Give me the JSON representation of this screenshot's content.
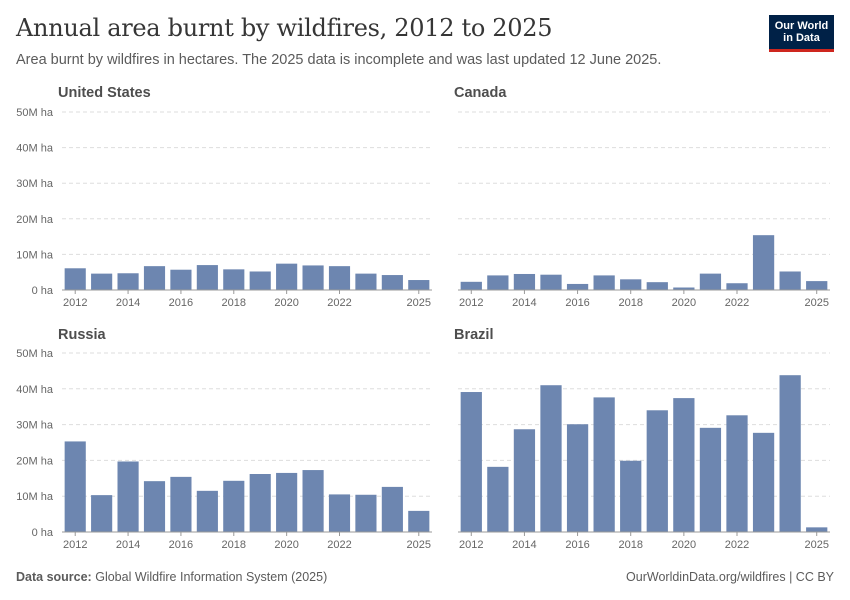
{
  "header": {
    "title": "Annual area burnt by wildfires, 2012 to 2025",
    "subtitle": "Area burnt by wildfires in hectares. The 2025 data is incomplete and was last updated 12 June 2025."
  },
  "logo": {
    "line1": "Our World",
    "line2": "in Data"
  },
  "footer": {
    "source_label": "Data source:",
    "source_text": "Global Wildfire Information System (2025)",
    "right_text": "OurWorldinData.org/wildfires | CC BY"
  },
  "colors": {
    "bar": "#6d86b0",
    "grid": "#dddddd",
    "axis": "#999999"
  },
  "chart_data": [
    {
      "type": "bar",
      "title": "United States",
      "x": [
        2012,
        2013,
        2014,
        2015,
        2016,
        2017,
        2018,
        2019,
        2020,
        2021,
        2022,
        2023,
        2024,
        2025
      ],
      "values": [
        6.1,
        4.6,
        4.7,
        6.7,
        5.7,
        7.0,
        5.8,
        5.2,
        7.4,
        6.9,
        6.7,
        4.6,
        4.2,
        2.8
      ],
      "unit": "M ha",
      "ylim": [
        0,
        50
      ],
      "yticks": [
        "0 ha",
        "10M ha",
        "20M ha",
        "30M ha",
        "40M ha",
        "50M ha"
      ],
      "xtick_labels": [
        "2012",
        "2014",
        "2016",
        "2018",
        "2020",
        "2022",
        "2025"
      ],
      "grid": true
    },
    {
      "type": "bar",
      "title": "Canada",
      "x": [
        2012,
        2013,
        2014,
        2015,
        2016,
        2017,
        2018,
        2019,
        2020,
        2021,
        2022,
        2023,
        2024,
        2025
      ],
      "values": [
        2.3,
        4.1,
        4.5,
        4.3,
        1.7,
        4.1,
        3.0,
        2.2,
        0.7,
        4.6,
        1.9,
        15.4,
        5.2,
        2.5
      ],
      "unit": "M ha",
      "ylim": [
        0,
        50
      ],
      "yticks": [
        "0 ha",
        "10M ha",
        "20M ha",
        "30M ha",
        "40M ha",
        "50M ha"
      ],
      "xtick_labels": [
        "2012",
        "2014",
        "2016",
        "2018",
        "2020",
        "2022",
        "2025"
      ],
      "grid": true
    },
    {
      "type": "bar",
      "title": "Russia",
      "x": [
        2012,
        2013,
        2014,
        2015,
        2016,
        2017,
        2018,
        2019,
        2020,
        2021,
        2022,
        2023,
        2024,
        2025
      ],
      "values": [
        25.3,
        10.3,
        19.7,
        14.2,
        15.4,
        11.5,
        14.3,
        16.2,
        16.5,
        17.3,
        10.5,
        10.4,
        12.6,
        5.9
      ],
      "unit": "M ha",
      "ylim": [
        0,
        50
      ],
      "yticks": [
        "0 ha",
        "10M ha",
        "20M ha",
        "30M ha",
        "40M ha",
        "50M ha"
      ],
      "xtick_labels": [
        "2012",
        "2014",
        "2016",
        "2018",
        "2020",
        "2022",
        "2025"
      ],
      "grid": true
    },
    {
      "type": "bar",
      "title": "Brazil",
      "x": [
        2012,
        2013,
        2014,
        2015,
        2016,
        2017,
        2018,
        2019,
        2020,
        2021,
        2022,
        2023,
        2024,
        2025
      ],
      "values": [
        39.1,
        18.2,
        28.7,
        41.0,
        30.1,
        37.6,
        19.9,
        34.0,
        37.4,
        29.1,
        32.6,
        27.7,
        43.8,
        1.3
      ],
      "unit": "M ha",
      "ylim": [
        0,
        50
      ],
      "yticks": [
        "0 ha",
        "10M ha",
        "20M ha",
        "30M ha",
        "40M ha",
        "50M ha"
      ],
      "xtick_labels": [
        "2012",
        "2014",
        "2016",
        "2018",
        "2020",
        "2022",
        "2025"
      ],
      "grid": true
    }
  ]
}
